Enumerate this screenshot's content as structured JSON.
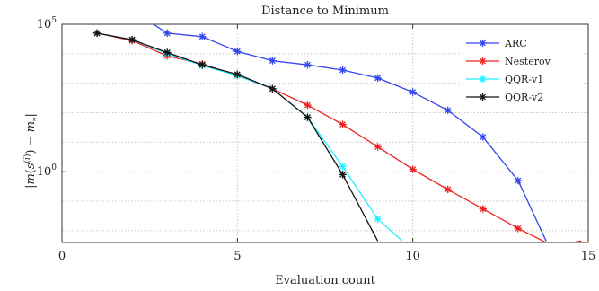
{
  "chart_data": {
    "type": "line",
    "title": "Distance to Minimum",
    "xlabel": "Evaluation count",
    "ylabel": "|m(s(i)) − m*|",
    "xlim": [
      0,
      15
    ],
    "ylim_log10": [
      -2.4,
      5
    ],
    "y_scale": "log",
    "grid": "dotted",
    "legend_position": "top-right",
    "x_tick_labels": [
      "0",
      "5",
      "10",
      "15"
    ],
    "y_tick_labels": [
      {
        "base": "10",
        "exp": "5",
        "log10": 5
      },
      {
        "base": "10",
        "exp": "0",
        "log10": 0
      }
    ],
    "series": [
      {
        "name": "ARC",
        "color": "#3344ee",
        "x": [
          2.5,
          3,
          4,
          5,
          6,
          7,
          8,
          9,
          10,
          11,
          12,
          13,
          13.8
        ],
        "y": [
          120000,
          50000,
          38000,
          12000,
          5800,
          4200,
          2800,
          1500,
          500,
          120,
          15,
          0.5,
          0.0045
        ]
      },
      {
        "name": "Nesterov",
        "color": "#ee2222",
        "x": [
          1,
          2,
          3,
          4,
          5,
          6,
          7,
          8,
          9,
          10,
          11,
          12,
          13,
          14,
          14.8
        ],
        "y": [
          50000,
          28000,
          8500,
          4500,
          1800,
          650,
          180,
          40,
          7,
          1.2,
          0.25,
          0.055,
          0.012,
          0.003,
          0.0045
        ]
      },
      {
        "name": "QQR-v1",
        "color": "#22eeff",
        "x": [
          1,
          2,
          3,
          4,
          5,
          6,
          7,
          8,
          9,
          9.7
        ],
        "y": [
          50000,
          30000,
          10000,
          4000,
          1800,
          650,
          70,
          1.5,
          0.025,
          0.0045
        ]
      },
      {
        "name": "QQR-v2",
        "color": "#111111",
        "x": [
          1,
          2,
          3,
          4,
          5,
          6,
          7,
          8,
          9
        ],
        "y": [
          50000,
          30000,
          11000,
          4200,
          2000,
          650,
          70,
          0.8,
          0.0045
        ]
      }
    ]
  }
}
